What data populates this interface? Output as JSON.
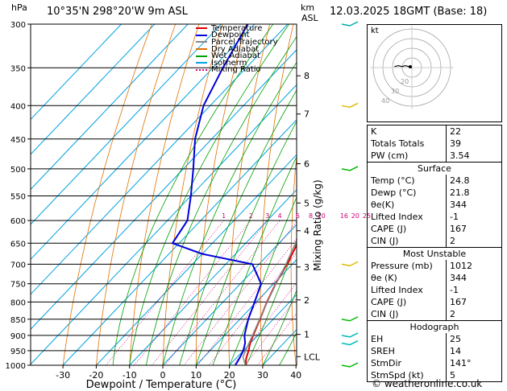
{
  "header": {
    "location": "10°35'N  298°20'W  9m  ASL",
    "date": "12.03.2025  18GMT  (Base: 18)",
    "hpa_label": "hPa",
    "km_label": "km",
    "asl_label": "ASL"
  },
  "chart_data": {
    "type": "line",
    "title": "",
    "xlabel": "Dewpoint / Temperature (°C)",
    "ylabel": "",
    "secondary_ylabel": "Mixing Ratio (g/kg)",
    "x_ticks": [
      -30,
      -20,
      -10,
      0,
      10,
      20,
      30,
      40
    ],
    "pressure_levels": [
      300,
      350,
      400,
      450,
      500,
      550,
      600,
      650,
      700,
      750,
      800,
      850,
      900,
      950,
      1000
    ],
    "km_ticks": [
      {
        "label": "8",
        "p": 360
      },
      {
        "label": "7",
        "p": 412
      },
      {
        "label": "6",
        "p": 491
      },
      {
        "label": "5",
        "p": 564
      },
      {
        "label": "4",
        "p": 622
      },
      {
        "label": "3",
        "p": 707
      },
      {
        "label": "2",
        "p": 794
      },
      {
        "label": "1",
        "p": 897
      },
      {
        "label": "LCL",
        "p": 970
      }
    ],
    "mixing_ratio_labels": [
      "1",
      "2",
      "3",
      "4",
      "6",
      "8",
      "10",
      "16",
      "20",
      "25"
    ],
    "mixing_ratio_values": [
      1,
      2,
      3,
      4,
      6,
      8,
      10,
      16,
      20,
      25
    ],
    "ylim": [
      300,
      1000
    ],
    "xlim": [
      -35,
      40
    ],
    "series": [
      {
        "name": "Temperature",
        "color": "#dd0000",
        "points": [
          [
            1000,
            24.8
          ],
          [
            975,
            23
          ],
          [
            950,
            21.6
          ],
          [
            925,
            19.9
          ],
          [
            900,
            18.6
          ],
          [
            850,
            16
          ],
          [
            800,
            13.2
          ],
          [
            750,
            10.6
          ],
          [
            700,
            8.4
          ],
          [
            650,
            5.6
          ],
          [
            600,
            2.2
          ],
          [
            550,
            -1.9
          ],
          [
            500,
            -6.2
          ],
          [
            450,
            -11.2
          ],
          [
            400,
            -17.2
          ],
          [
            350,
            -24.6
          ],
          [
            300,
            -32
          ]
        ]
      },
      {
        "name": "Dewpoint",
        "color": "#0000dd",
        "points": [
          [
            1000,
            21.8
          ],
          [
            975,
            21
          ],
          [
            950,
            20
          ],
          [
            925,
            18.4
          ],
          [
            900,
            16
          ],
          [
            850,
            12.5
          ],
          [
            800,
            9.5
          ],
          [
            750,
            6.2
          ],
          [
            700,
            -2
          ],
          [
            675,
            -20
          ],
          [
            650,
            -32
          ],
          [
            600,
            -34
          ],
          [
            550,
            -40
          ],
          [
            500,
            -47
          ],
          [
            450,
            -55
          ],
          [
            400,
            -62
          ],
          [
            350,
            -67
          ],
          [
            300,
            -72
          ]
        ]
      },
      {
        "name": "Parcel Trajectory",
        "color": "#888888",
        "points": [
          [
            1000,
            24.8
          ],
          [
            970,
            21.6
          ],
          [
            900,
            18.4
          ],
          [
            850,
            15.9
          ],
          [
            800,
            13.3
          ],
          [
            750,
            10.7
          ],
          [
            700,
            8.1
          ],
          [
            650,
            4.9
          ],
          [
            600,
            1.5
          ],
          [
            550,
            -2.3
          ],
          [
            500,
            -6.6
          ],
          [
            450,
            -11.6
          ],
          [
            400,
            -17.3
          ],
          [
            350,
            -24.5
          ],
          [
            300,
            -33.2
          ]
        ]
      }
    ]
  },
  "legend": [
    {
      "label": "Temperature",
      "color": "#dd0000",
      "dash": ""
    },
    {
      "label": "Dewpoint",
      "color": "#0000dd",
      "dash": ""
    },
    {
      "label": "Parcel Trajectory",
      "color": "#888888",
      "dash": ""
    },
    {
      "label": "Dry Adiabat",
      "color": "#e07000",
      "dash": ""
    },
    {
      "label": "Wet Adiabat",
      "color": "#00a000",
      "dash": ""
    },
    {
      "label": "Isotherm",
      "color": "#00a0e0",
      "dash": ""
    },
    {
      "label": "Mixing Ratio",
      "color": "#cc0077",
      "dash": "2,2"
    }
  ],
  "hodograph": {
    "label": "kt",
    "ring_labels": [
      "40",
      "30",
      "20"
    ],
    "u": [
      0,
      -3,
      -7,
      -10,
      -14,
      -18
    ],
    "v": [
      0,
      1,
      2,
      1,
      2,
      1
    ]
  },
  "indices": [
    {
      "label": "K",
      "value": "22"
    },
    {
      "label": "Totals Totals",
      "value": "39"
    },
    {
      "label": "PW (cm)",
      "value": "3.54"
    }
  ],
  "surface": {
    "title": "Surface",
    "rows": [
      {
        "label": "Temp (°C)",
        "value": "24.8"
      },
      {
        "label": "Dewp (°C)",
        "value": "21.8"
      },
      {
        "label": "θe(K)",
        "value": "344"
      },
      {
        "label": "Lifted Index",
        "value": "-1"
      },
      {
        "label": "CAPE (J)",
        "value": "167"
      },
      {
        "label": "CIN (J)",
        "value": "2"
      }
    ]
  },
  "most_unstable": {
    "title": "Most Unstable",
    "rows": [
      {
        "label": "Pressure (mb)",
        "value": "1012"
      },
      {
        "label": "θe (K)",
        "value": "344"
      },
      {
        "label": "Lifted Index",
        "value": "-1"
      },
      {
        "label": "CAPE (J)",
        "value": "167"
      },
      {
        "label": "CIN (J)",
        "value": "2"
      }
    ]
  },
  "hodograph_table": {
    "title": "Hodograph",
    "rows": [
      {
        "label": "EH",
        "value": "25"
      },
      {
        "label": "SREH",
        "value": "14"
      },
      {
        "label": "StmDir",
        "value": "141°"
      },
      {
        "label": "StmSpd (kt)",
        "value": "5"
      }
    ]
  },
  "wind_barbs": [
    {
      "p": 300,
      "color": "#00aaaa"
    },
    {
      "p": 400,
      "color": "#ddbb00"
    },
    {
      "p": 500,
      "color": "#00bb00"
    },
    {
      "p": 700,
      "color": "#ddbb00"
    },
    {
      "p": 850,
      "color": "#00bb00"
    },
    {
      "p": 900,
      "color": "#00bbbb"
    },
    {
      "p": 925,
      "color": "#00bbbb"
    },
    {
      "p": 1000,
      "color": "#00bb00"
    }
  ],
  "footer": "© weatheronline.co.uk"
}
